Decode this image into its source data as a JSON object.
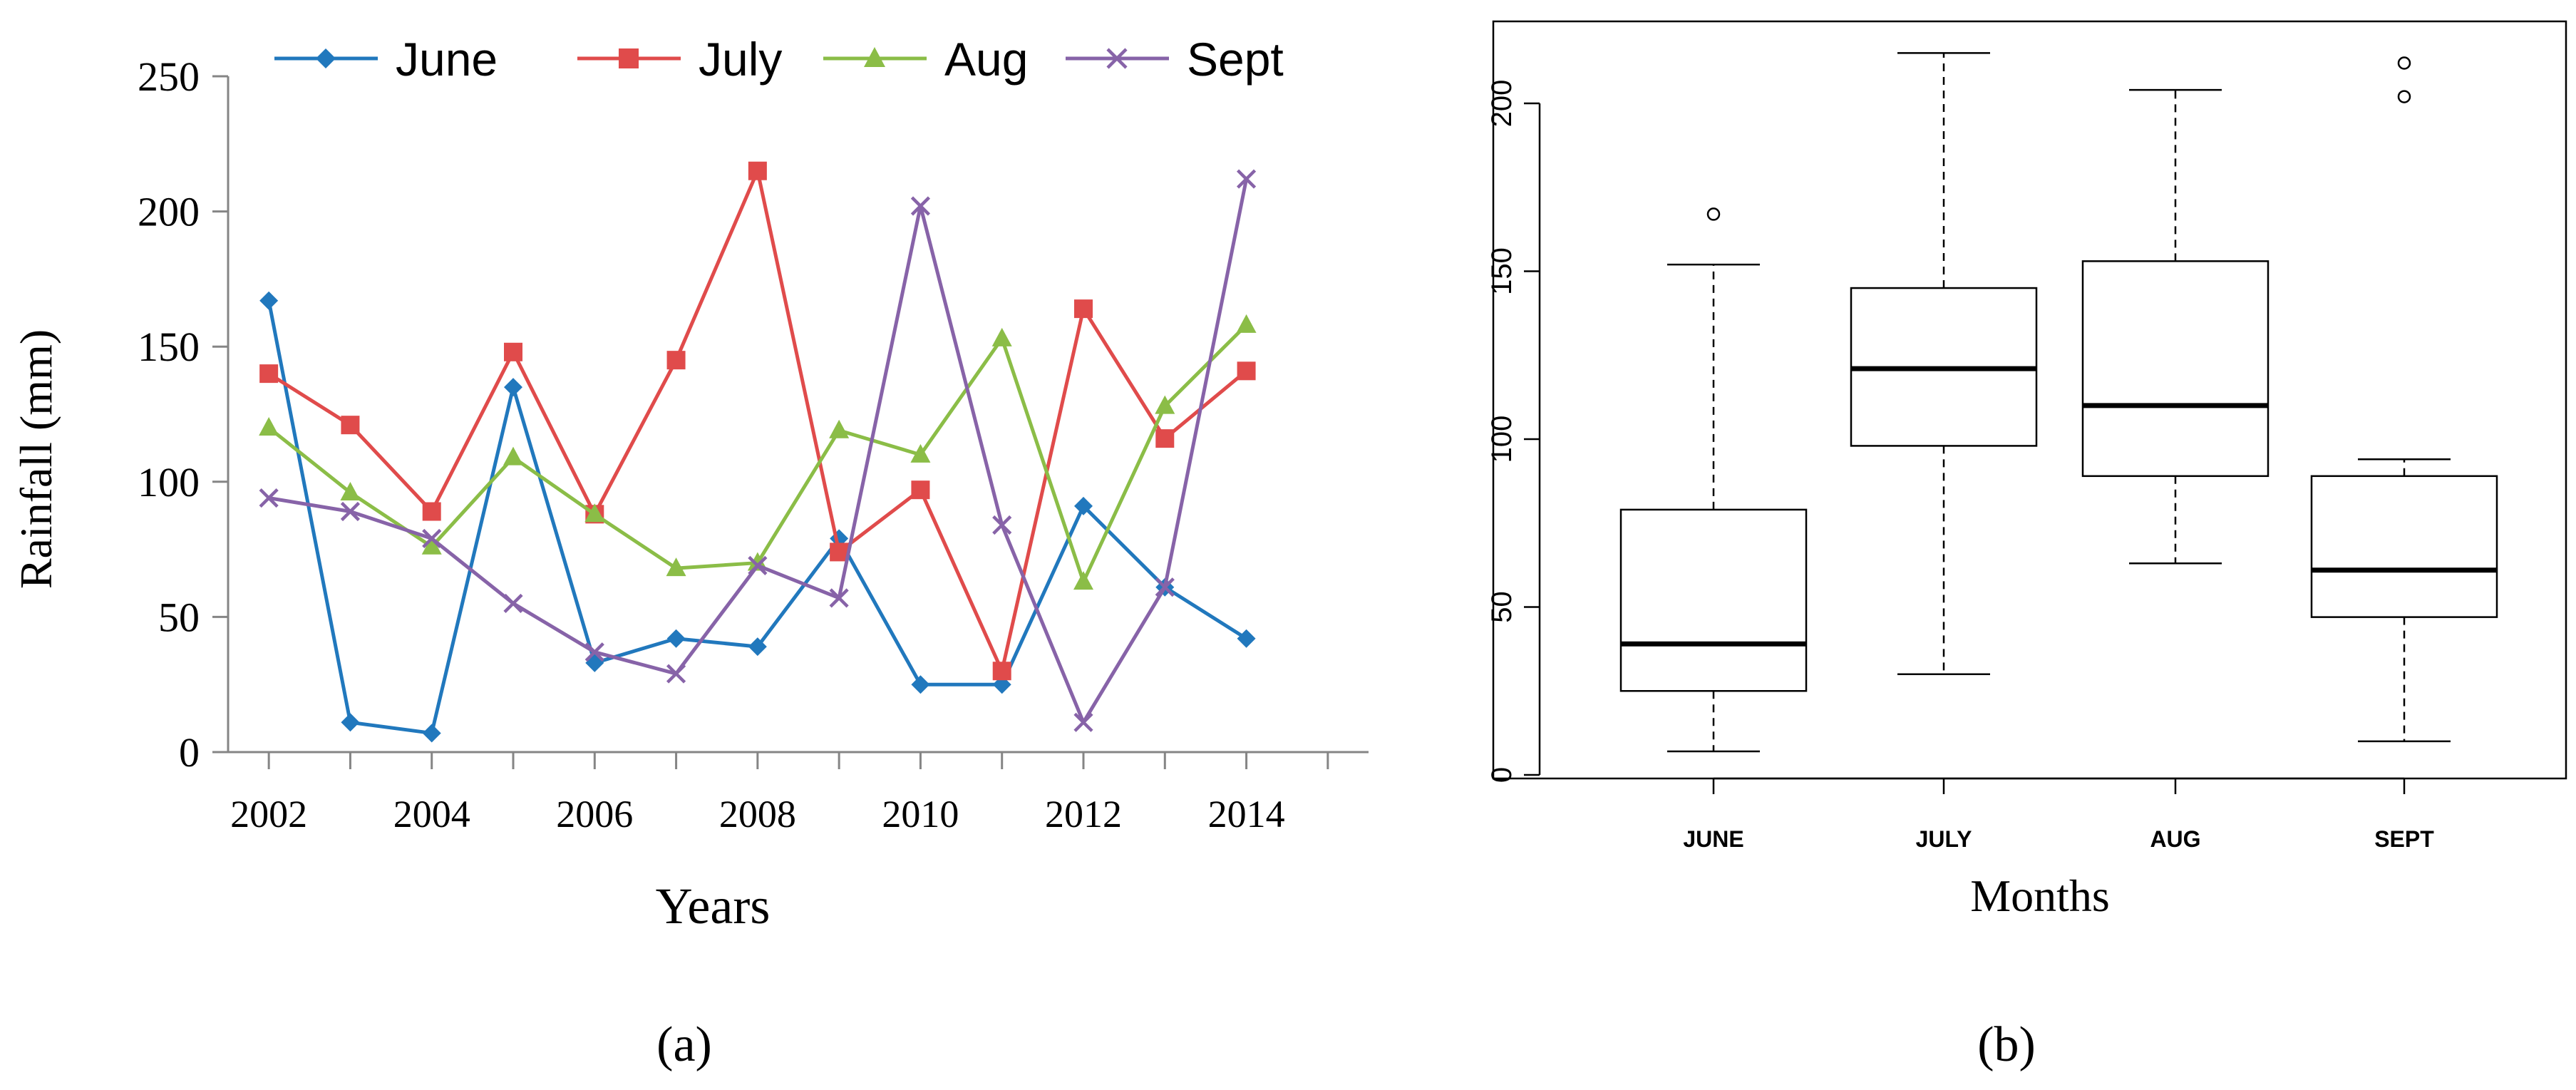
{
  "chart_data": [
    {
      "type": "line",
      "panel_label": "(a)",
      "title": "",
      "xlabel": "Years",
      "ylabel": "Rainfall (mm)",
      "xlim": [
        2001.5,
        2015.5
      ],
      "ylim": [
        0,
        250
      ],
      "xticks": [
        2002,
        2004,
        2006,
        2008,
        2010,
        2012,
        2014
      ],
      "yticks": [
        0,
        50,
        100,
        150,
        200,
        250
      ],
      "grid": false,
      "legend": "top",
      "x": [
        2002,
        2003,
        2004,
        2005,
        2006,
        2007,
        2008,
        2009,
        2010,
        2011,
        2012,
        2013,
        2014
      ],
      "series": [
        {
          "name": "June",
          "color": "#2178bd",
          "marker": "diamond",
          "values": [
            167,
            11,
            7,
            135,
            33,
            42,
            39,
            79,
            25,
            25,
            91,
            61,
            42
          ]
        },
        {
          "name": "July",
          "color": "#e04b4b",
          "marker": "square",
          "values": [
            140,
            121,
            89,
            148,
            88,
            145,
            215,
            74,
            97,
            30,
            164,
            116,
            141
          ]
        },
        {
          "name": "Aug",
          "color": "#8bbd47",
          "marker": "triangle",
          "values": [
            120,
            96,
            76,
            109,
            88,
            68,
            70,
            119,
            110,
            153,
            63,
            128,
            158
          ]
        },
        {
          "name": "Sept",
          "color": "#8763a8",
          "marker": "x",
          "values": [
            94,
            89,
            79,
            55,
            37,
            29,
            69,
            57,
            202,
            84,
            11,
            61,
            212
          ]
        }
      ]
    },
    {
      "type": "box",
      "panel_label": "(b)",
      "title": "",
      "xlabel": "Months",
      "ylabel": "",
      "ylim": [
        0,
        215
      ],
      "yticks": [
        0,
        50,
        100,
        150,
        200
      ],
      "categories": [
        "JUNE",
        "JULY",
        "AUG",
        "SEPT"
      ],
      "boxes": [
        {
          "name": "JUNE",
          "whisker_low": 7,
          "q1": 25,
          "median": 39,
          "q3": 79,
          "whisker_high": 152,
          "outliers": [
            167
          ]
        },
        {
          "name": "JULY",
          "whisker_low": 30,
          "q1": 98,
          "median": 121,
          "q3": 145,
          "whisker_high": 215,
          "outliers": []
        },
        {
          "name": "AUG",
          "whisker_low": 63,
          "q1": 89,
          "median": 110,
          "q3": 153,
          "whisker_high": 204,
          "outliers": []
        },
        {
          "name": "SEPT",
          "whisker_low": 10,
          "q1": 47,
          "median": 61,
          "q3": 89,
          "whisker_high": 94,
          "outliers": [
            202,
            212
          ]
        }
      ]
    }
  ]
}
